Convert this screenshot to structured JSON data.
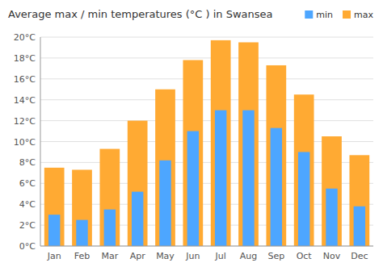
{
  "chart_data": {
    "type": "bar",
    "title": "Average max / min temperatures (°C ) in Swansea",
    "categories": [
      "Jan",
      "Feb",
      "Mar",
      "Apr",
      "May",
      "Jun",
      "Jul",
      "Aug",
      "Sep",
      "Oct",
      "Nov",
      "Dec"
    ],
    "series": [
      {
        "name": "min",
        "color": "#4da6ff",
        "values": [
          3.0,
          2.5,
          3.5,
          5.2,
          8.2,
          11.0,
          13.0,
          13.0,
          11.3,
          9.0,
          5.5,
          3.8
        ]
      },
      {
        "name": "max",
        "color": "#ffaa33",
        "values": [
          7.5,
          7.3,
          9.3,
          12.0,
          15.0,
          17.8,
          19.7,
          19.5,
          17.3,
          14.5,
          10.5,
          8.7
        ]
      }
    ],
    "ylim": [
      0,
      20
    ],
    "yticks": [
      {
        "value": 0,
        "label": "0°C"
      },
      {
        "value": 2,
        "label": "2°C"
      },
      {
        "value": 4,
        "label": "4°C"
      },
      {
        "value": 6,
        "label": "6°C"
      },
      {
        "value": 8,
        "label": "8°C"
      },
      {
        "value": 10,
        "label": "10°C"
      },
      {
        "value": 12,
        "label": "12°C"
      },
      {
        "value": 14,
        "label": "14°C"
      },
      {
        "value": 16,
        "label": "16°C"
      },
      {
        "value": 18,
        "label": "18°C"
      },
      {
        "value": 20,
        "label": "20°C"
      }
    ],
    "grid": true,
    "legend": "top-right"
  }
}
